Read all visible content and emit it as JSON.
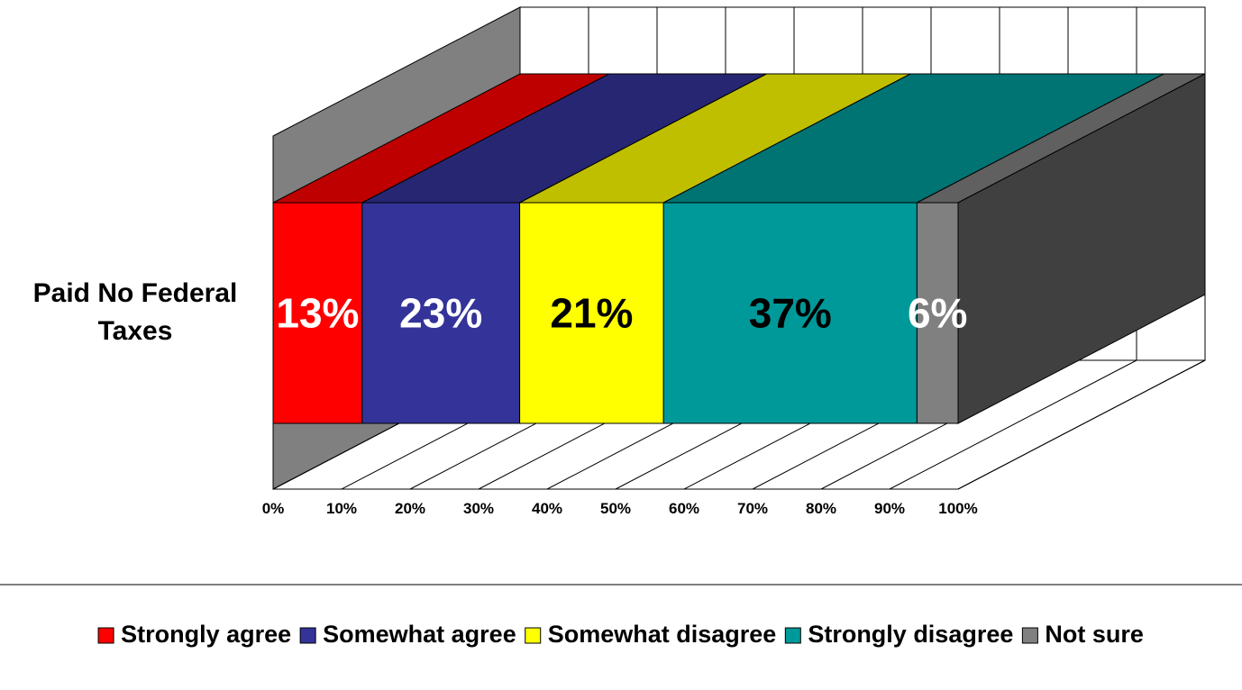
{
  "chart_data": {
    "type": "bar",
    "orientation": "horizontal",
    "stacked": true,
    "three_d": true,
    "categories": [
      "Paid No Federal Taxes"
    ],
    "series": [
      {
        "name": "Strongly agree",
        "values": [
          13
        ],
        "label": "13%",
        "color": "#FF0000",
        "label_color": "#FFFFFF"
      },
      {
        "name": "Somewhat agree",
        "values": [
          23
        ],
        "label": "23%",
        "color": "#333399",
        "label_color": "#FFFFFF"
      },
      {
        "name": "Somewhat disagree",
        "values": [
          21
        ],
        "label": "21%",
        "color": "#FFFF00",
        "label_color": "#000000"
      },
      {
        "name": "Strongly disagree",
        "values": [
          37
        ],
        "label": "37%",
        "color": "#009999",
        "label_color": "#000000"
      },
      {
        "name": "Not sure",
        "values": [
          6
        ],
        "label": "6%",
        "color": "#808080",
        "label_color": "#FFFFFF"
      }
    ],
    "xaxis": {
      "ticks": [
        "0%",
        "10%",
        "20%",
        "30%",
        "40%",
        "50%",
        "60%",
        "70%",
        "80%",
        "90%",
        "100%"
      ],
      "range": [
        0,
        100
      ]
    },
    "grid": true,
    "legend": {
      "position": "bottom"
    },
    "title": "",
    "xlabel": "",
    "ylabel": ""
  }
}
